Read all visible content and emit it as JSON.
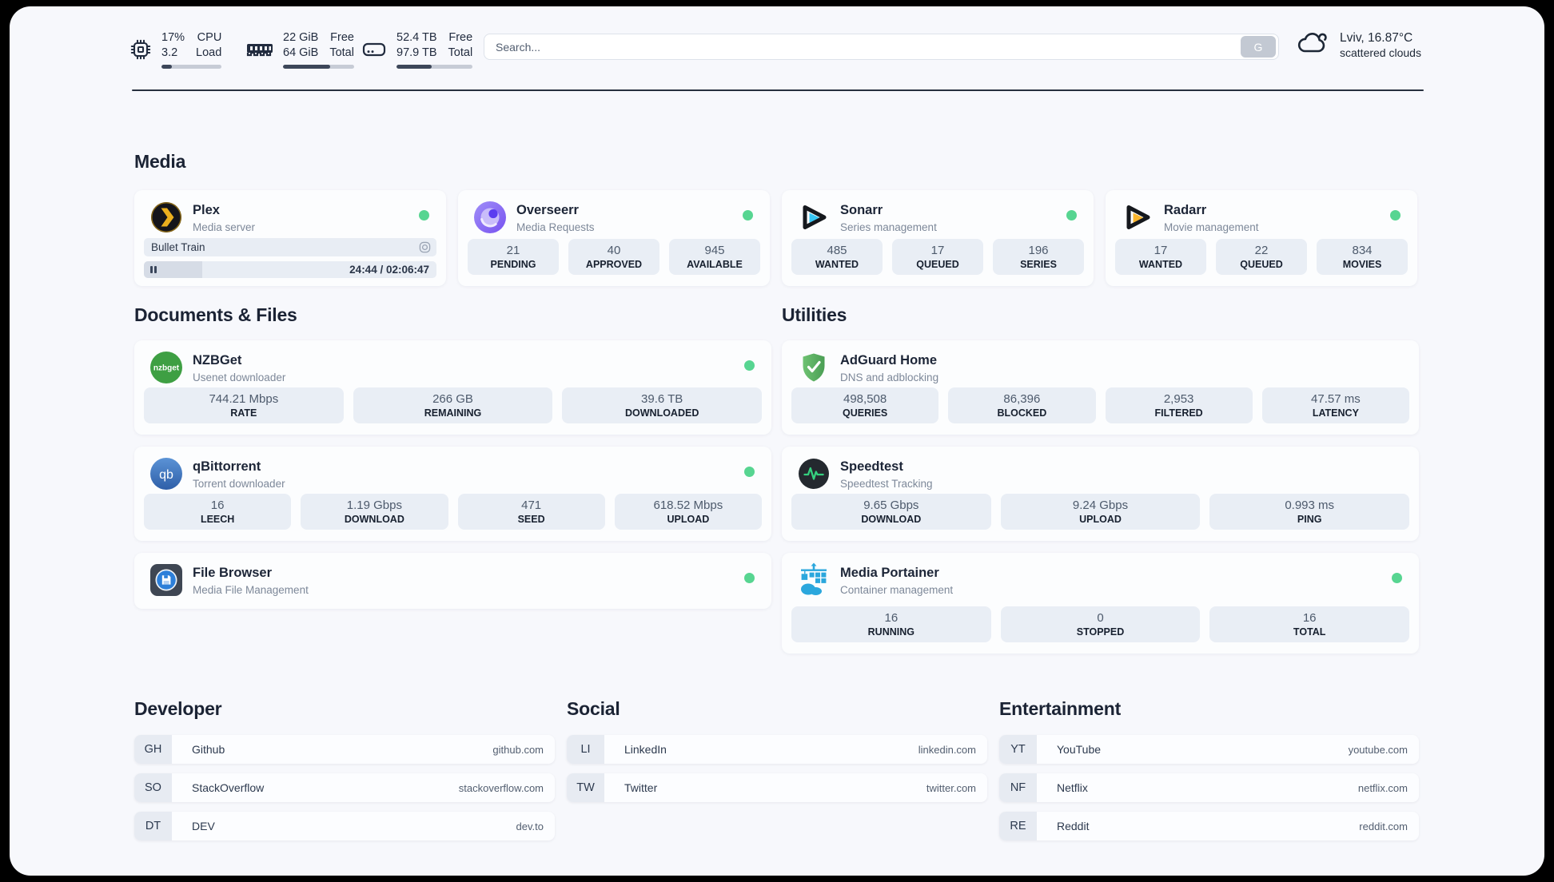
{
  "colors": {
    "status_online": "#57d591",
    "progress_fill": "#3d4759",
    "plex_gold": "#ebaf1e",
    "sonarr_cyan": "#36c6f4",
    "radarr_gold": "#fbb52c",
    "nzbget_green": "#3e9f43",
    "qbittorrent_blue": "#3d77c2",
    "adguard_green": "#5aab60",
    "speedtest_pulse": "#35d07f",
    "portainer_blue": "#2ba7dd"
  },
  "header": {
    "metrics": [
      {
        "name": "cpu",
        "icon": "cpu-icon",
        "values": [
          "17%",
          "3.2"
        ],
        "labels": [
          "CPU",
          "Load"
        ],
        "progress_pct": 17
      },
      {
        "name": "memory",
        "icon": "ram-icon",
        "values": [
          "22 GiB",
          "64 GiB"
        ],
        "labels": [
          "Free",
          "Total"
        ],
        "progress_pct": 66
      },
      {
        "name": "storage",
        "icon": "hard-drive-icon",
        "values": [
          "52.4 TB",
          "97.9 TB"
        ],
        "labels": [
          "Free",
          "Total"
        ],
        "progress_pct": 46
      }
    ],
    "search": {
      "placeholder": "Search...",
      "engine_button": "G"
    },
    "weather": {
      "icon": "cloud-icon",
      "location": "Lviv, 16.87°C",
      "condition": "scattered clouds"
    }
  },
  "sections": {
    "media": {
      "title": "Media",
      "plex": {
        "title": "Plex",
        "subtitle": "Media server",
        "online": true,
        "now_playing": "Bullet Train",
        "time_display": "24:44 / 02:06:47",
        "progress_pct": 20
      },
      "overseerr": {
        "title": "Overseerr",
        "subtitle": "Media Requests",
        "online": true,
        "stats": [
          {
            "value": "21",
            "label": "PENDING"
          },
          {
            "value": "40",
            "label": "APPROVED"
          },
          {
            "value": "945",
            "label": "AVAILABLE"
          }
        ]
      },
      "sonarr": {
        "title": "Sonarr",
        "subtitle": "Series management",
        "online": true,
        "stats": [
          {
            "value": "485",
            "label": "WANTED"
          },
          {
            "value": "17",
            "label": "QUEUED"
          },
          {
            "value": "196",
            "label": "SERIES"
          }
        ]
      },
      "radarr": {
        "title": "Radarr",
        "subtitle": "Movie management",
        "online": true,
        "stats": [
          {
            "value": "17",
            "label": "WANTED"
          },
          {
            "value": "22",
            "label": "QUEUED"
          },
          {
            "value": "834",
            "label": "MOVIES"
          }
        ]
      }
    },
    "documents": {
      "title": "Documents & Files",
      "nzbget": {
        "title": "NZBGet",
        "subtitle": "Usenet downloader",
        "online": true,
        "stats": [
          {
            "value": "744.21 Mbps",
            "label": "RATE"
          },
          {
            "value": "266 GB",
            "label": "REMAINING"
          },
          {
            "value": "39.6 TB",
            "label": "DOWNLOADED"
          }
        ]
      },
      "qbittorrent": {
        "title": "qBittorrent",
        "subtitle": "Torrent downloader",
        "online": true,
        "stats": [
          {
            "value": "16",
            "label": "LEECH"
          },
          {
            "value": "1.19 Gbps",
            "label": "DOWNLOAD"
          },
          {
            "value": "471",
            "label": "SEED"
          },
          {
            "value": "618.52 Mbps",
            "label": "UPLOAD"
          }
        ]
      },
      "filebrowser": {
        "title": "File Browser",
        "subtitle": "Media File Management",
        "online": true
      }
    },
    "utilities": {
      "title": "Utilities",
      "adguard": {
        "title": "AdGuard Home",
        "subtitle": "DNS and adblocking",
        "stats": [
          {
            "value": "498,508",
            "label": "QUERIES"
          },
          {
            "value": "86,396",
            "label": "BLOCKED"
          },
          {
            "value": "2,953",
            "label": "FILTERED"
          },
          {
            "value": "47.57 ms",
            "label": "LATENCY"
          }
        ]
      },
      "speedtest": {
        "title": "Speedtest",
        "subtitle": "Speedtest Tracking",
        "stats": [
          {
            "value": "9.65 Gbps",
            "label": "DOWNLOAD"
          },
          {
            "value": "9.24 Gbps",
            "label": "UPLOAD"
          },
          {
            "value": "0.993 ms",
            "label": "PING"
          }
        ]
      },
      "portainer": {
        "title": "Media Portainer",
        "subtitle": "Container management",
        "online": true,
        "stats": [
          {
            "value": "16",
            "label": "RUNNING"
          },
          {
            "value": "0",
            "label": "STOPPED"
          },
          {
            "value": "16",
            "label": "TOTAL"
          }
        ]
      }
    },
    "bookmarks": [
      {
        "title": "Developer",
        "items": [
          {
            "abbr": "GH",
            "name": "Github",
            "url": "github.com"
          },
          {
            "abbr": "SO",
            "name": "StackOverflow",
            "url": "stackoverflow.com"
          },
          {
            "abbr": "DT",
            "name": "DEV",
            "url": "dev.to"
          }
        ]
      },
      {
        "title": "Social",
        "items": [
          {
            "abbr": "LI",
            "name": "LinkedIn",
            "url": "linkedin.com"
          },
          {
            "abbr": "TW",
            "name": "Twitter",
            "url": "twitter.com"
          }
        ]
      },
      {
        "title": "Entertainment",
        "items": [
          {
            "abbr": "YT",
            "name": "YouTube",
            "url": "youtube.com"
          },
          {
            "abbr": "NF",
            "name": "Netflix",
            "url": "netflix.com"
          },
          {
            "abbr": "RE",
            "name": "Reddit",
            "url": "reddit.com"
          }
        ]
      }
    ]
  }
}
